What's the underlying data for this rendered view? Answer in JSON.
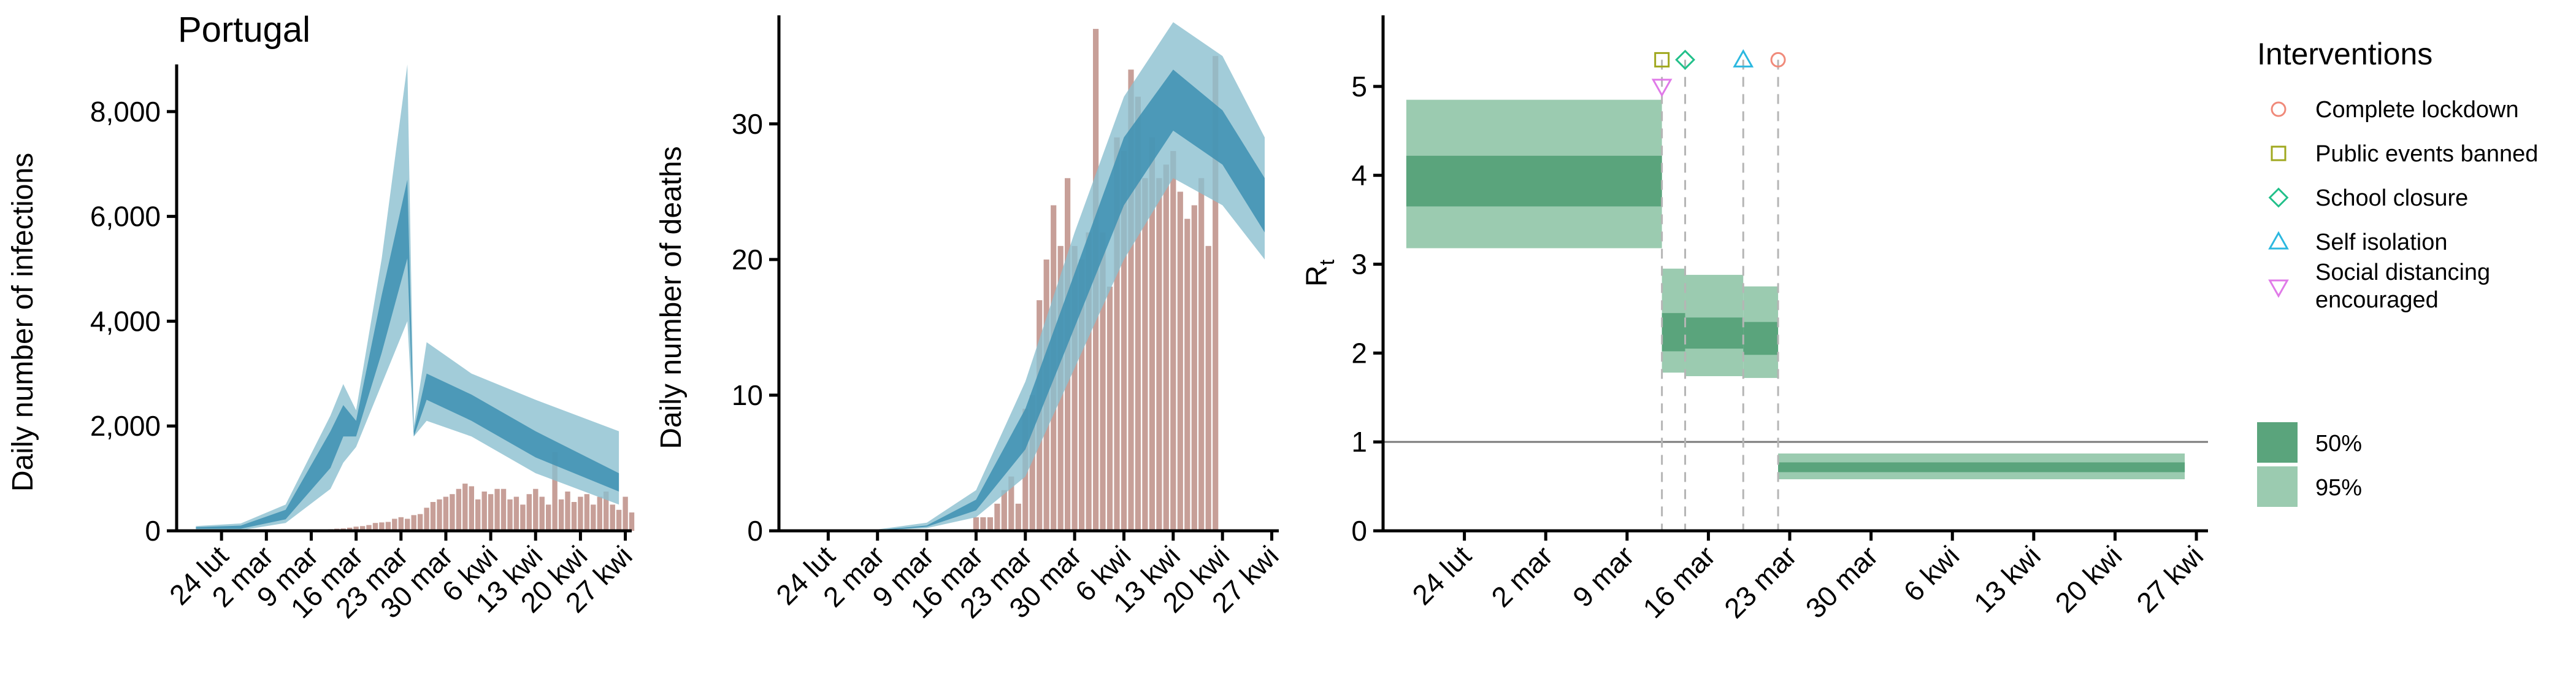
{
  "colors": {
    "band_95_blue": "#8bbfd0",
    "band_50_blue": "#3d8fb1",
    "median_blue": "#2f7f99",
    "bar_brown": "#c79f98",
    "band_95_green": "#9bcbb0",
    "band_50_green": "#5aa47c",
    "lockdown_color": "#f08a7a",
    "events_color": "#a0a81f",
    "school_color": "#22c08a",
    "isolation_color": "#2cb8e0",
    "distancing_color": "#e07ae8"
  },
  "chart_data": [
    {
      "id": "infections",
      "type": "area",
      "title": "Portugal",
      "xlabel": "",
      "ylabel": "Daily number of infections",
      "date_range": [
        "2020-02-17",
        "2020-04-28"
      ],
      "ylim": [
        0,
        8900
      ],
      "yticks": [
        0,
        2000,
        4000,
        6000,
        8000
      ],
      "ytick_labels": [
        "0",
        "2,000",
        "4,000",
        "6,000",
        "8,000"
      ],
      "xtick_dates": [
        "2020-02-24",
        "2020-03-02",
        "2020-03-09",
        "2020-03-16",
        "2020-03-23",
        "2020-03-30",
        "2020-04-06",
        "2020-04-13",
        "2020-04-20",
        "2020-04-27"
      ],
      "xtick_labels": [
        "24 lut",
        "2 mar",
        "9 mar",
        "16 mar",
        "23 mar",
        "30 mar",
        "6 kwi",
        "13 kwi",
        "20 kwi",
        "27 kwi"
      ],
      "bars_start": "2020-03-01",
      "bars": [
        0,
        0,
        2,
        2,
        4,
        4,
        6,
        8,
        11,
        14,
        19,
        30,
        40,
        45,
        60,
        80,
        90,
        110,
        150,
        160,
        170,
        230,
        260,
        230,
        300,
        320,
        440,
        550,
        600,
        650,
        700,
        800,
        900,
        850,
        600,
        750,
        700,
        800,
        800,
        600,
        650,
        500,
        700,
        800,
        650,
        500,
        1500,
        600,
        750,
        550,
        650,
        700,
        500,
        650,
        750,
        500,
        400,
        650,
        350
      ],
      "band95": [
        [
          "2020-02-20",
          20,
          90
        ],
        [
          "2020-02-27",
          10,
          140
        ],
        [
          "2020-03-05",
          150,
          500
        ],
        [
          "2020-03-12",
          800,
          2200
        ],
        [
          "2020-03-14",
          1300,
          2800
        ],
        [
          "2020-03-16",
          1600,
          2300
        ],
        [
          "2020-03-20",
          2800,
          5200
        ],
        [
          "2020-03-24",
          4000,
          8900
        ],
        [
          "2020-03-25",
          1800,
          2000
        ],
        [
          "2020-03-27",
          2100,
          3600
        ],
        [
          "2020-04-03",
          1800,
          3000
        ],
        [
          "2020-04-13",
          1100,
          2500
        ],
        [
          "2020-04-26",
          500,
          1900
        ]
      ],
      "band50": [
        [
          "2020-02-20",
          40,
          70
        ],
        [
          "2020-02-27",
          40,
          100
        ],
        [
          "2020-03-05",
          220,
          400
        ],
        [
          "2020-03-12",
          1200,
          1900
        ],
        [
          "2020-03-14",
          1800,
          2400
        ],
        [
          "2020-03-16",
          1800,
          2100
        ],
        [
          "2020-03-20",
          3400,
          4500
        ],
        [
          "2020-03-24",
          5200,
          6700
        ],
        [
          "2020-03-25",
          1800,
          1900
        ],
        [
          "2020-03-27",
          2500,
          3000
        ],
        [
          "2020-04-03",
          2100,
          2600
        ],
        [
          "2020-04-13",
          1400,
          1900
        ],
        [
          "2020-04-26",
          750,
          1100
        ]
      ]
    },
    {
      "id": "deaths",
      "type": "area",
      "title": "",
      "xlabel": "",
      "ylabel": "Daily number of deaths",
      "date_range": [
        "2020-02-17",
        "2020-04-28"
      ],
      "ylim": [
        0,
        38
      ],
      "yticks": [
        0,
        10,
        20,
        30
      ],
      "ytick_labels": [
        "0",
        "10",
        "20",
        "30"
      ],
      "xtick_dates": [
        "2020-02-24",
        "2020-03-02",
        "2020-03-09",
        "2020-03-16",
        "2020-03-23",
        "2020-03-30",
        "2020-04-06",
        "2020-04-13",
        "2020-04-20",
        "2020-04-27"
      ],
      "xtick_labels": [
        "24 lut",
        "2 mar",
        "9 mar",
        "16 mar",
        "23 mar",
        "30 mar",
        "6 kwi",
        "13 kwi",
        "20 kwi",
        "27 kwi"
      ],
      "bars_start": "2020-03-16",
      "bars": [
        1,
        1,
        1,
        2,
        3,
        4,
        2,
        9,
        10,
        17,
        20,
        24,
        21,
        26,
        21,
        20,
        22,
        37,
        22,
        18,
        29,
        28,
        34,
        32,
        26,
        29,
        26,
        27,
        28,
        25,
        23,
        24,
        26,
        21,
        35
      ],
      "band95": [
        [
          "2020-02-26",
          0,
          0
        ],
        [
          "2020-03-02",
          0,
          0.1
        ],
        [
          "2020-03-09",
          0.2,
          0.6
        ],
        [
          "2020-03-16",
          1,
          3
        ],
        [
          "2020-03-23",
          4,
          11
        ],
        [
          "2020-03-30",
          12,
          22
        ],
        [
          "2020-04-06",
          20,
          32
        ],
        [
          "2020-04-13",
          26,
          37.5
        ],
        [
          "2020-04-20",
          24,
          35
        ],
        [
          "2020-04-26",
          20,
          29
        ]
      ],
      "band50": [
        [
          "2020-02-26",
          0,
          0
        ],
        [
          "2020-03-02",
          0,
          0.05
        ],
        [
          "2020-03-09",
          0.3,
          0.4
        ],
        [
          "2020-03-16",
          1.5,
          2.3
        ],
        [
          "2020-03-23",
          6,
          9
        ],
        [
          "2020-03-30",
          15,
          19
        ],
        [
          "2020-04-06",
          24,
          29
        ],
        [
          "2020-04-13",
          29.5,
          34
        ],
        [
          "2020-04-20",
          27,
          31
        ],
        [
          "2020-04-26",
          22,
          26
        ]
      ]
    },
    {
      "id": "rt",
      "type": "area",
      "title": "",
      "xlabel": "",
      "ylabel": "R",
      "ylabel_subscript": "t",
      "date_range": [
        "2020-02-17",
        "2020-04-28"
      ],
      "ylim": [
        0,
        5.8
      ],
      "yticks": [
        0,
        1,
        2,
        3,
        4,
        5
      ],
      "ytick_labels": [
        "0",
        "1",
        "2",
        "3",
        "4",
        "5"
      ],
      "xtick_dates": [
        "2020-02-24",
        "2020-03-02",
        "2020-03-09",
        "2020-03-16",
        "2020-03-23",
        "2020-03-30",
        "2020-04-06",
        "2020-04-13",
        "2020-04-20",
        "2020-04-27"
      ],
      "xtick_labels": [
        "24 lut",
        "2 mar",
        "9 mar",
        "16 mar",
        "23 mar",
        "30 mar",
        "6 kwi",
        "13 kwi",
        "20 kwi",
        "27 kwi"
      ],
      "reference_line": 1,
      "segments": [
        {
          "start": "2020-02-19",
          "end": "2020-03-12",
          "lo95": 3.18,
          "hi95": 4.85,
          "lo50": 3.65,
          "hi50": 4.22
        },
        {
          "start": "2020-03-12",
          "end": "2020-03-14",
          "lo95": 1.78,
          "hi95": 2.95,
          "lo50": 2.02,
          "hi50": 2.45
        },
        {
          "start": "2020-03-14",
          "end": "2020-03-19",
          "lo95": 1.74,
          "hi95": 2.88,
          "lo50": 2.05,
          "hi50": 2.4
        },
        {
          "start": "2020-03-19",
          "end": "2020-03-22",
          "lo95": 1.72,
          "hi95": 2.75,
          "lo50": 1.98,
          "hi50": 2.35
        },
        {
          "start": "2020-03-22",
          "end": "2020-04-26",
          "lo95": 0.58,
          "hi95": 0.87,
          "lo50": 0.66,
          "hi50": 0.77
        }
      ],
      "interventions": [
        {
          "name": "Complete lockdown",
          "date": "2020-03-22",
          "value": 5.3,
          "marker": "circle"
        },
        {
          "name": "Public events banned",
          "date": "2020-03-12",
          "value": 5.3,
          "marker": "square"
        },
        {
          "name": "School closure",
          "date": "2020-03-14",
          "value": 5.3,
          "marker": "diamond"
        },
        {
          "name": "Self isolation",
          "date": "2020-03-19",
          "value": 5.3,
          "marker": "triangle-up"
        },
        {
          "name": "Social distancing encouraged",
          "date": "2020-03-12",
          "value": 5.0,
          "marker": "triangle-down"
        }
      ]
    }
  ],
  "legend": {
    "title": "Interventions",
    "items": [
      {
        "lines": [
          "Complete lockdown"
        ],
        "marker": "circle",
        "color_key": "lockdown_color"
      },
      {
        "lines": [
          "Public events banned"
        ],
        "marker": "square",
        "color_key": "events_color"
      },
      {
        "lines": [
          "School closure"
        ],
        "marker": "diamond",
        "color_key": "school_color"
      },
      {
        "lines": [
          "Self isolation"
        ],
        "marker": "triangle-up",
        "color_key": "isolation_color"
      },
      {
        "lines": [
          "Social distancing",
          " encouraged"
        ],
        "marker": "triangle-down",
        "color_key": "distancing_color"
      }
    ],
    "bands": [
      {
        "label": "50%",
        "color_key": "band_50_green"
      },
      {
        "label": "95%",
        "color_key": "band_95_green"
      }
    ]
  }
}
